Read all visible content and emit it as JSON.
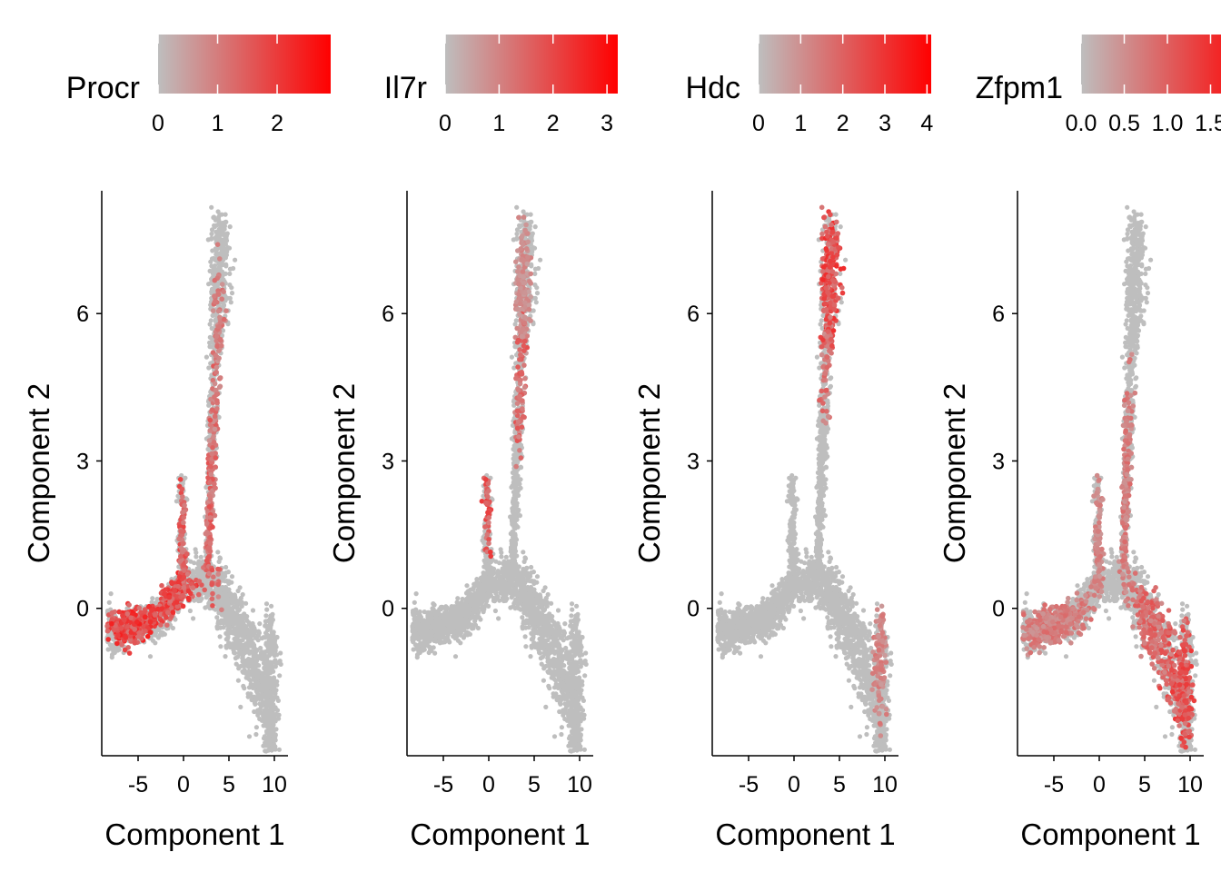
{
  "chart_data": [
    {
      "type": "scatter",
      "gene": "Procr",
      "xlabel": "Component 1",
      "ylabel": "Component 2",
      "x_ticks": [
        -5,
        0,
        5,
        10
      ],
      "y_ticks": [
        0,
        3,
        6
      ],
      "xlim": [
        -9,
        11.5
      ],
      "ylim": [
        -3,
        8.5
      ],
      "color_scale": {
        "low": "#bebebe",
        "high": "#ff0000",
        "min": 0,
        "max": 2.9,
        "ticks": [
          0,
          1,
          2
        ]
      },
      "expression_regions": [
        {
          "x": -6.0,
          "y": -0.25,
          "sx": 1.6,
          "sy": 0.35,
          "level": 0.65
        },
        {
          "x": -1.0,
          "y": 0.25,
          "sx": 1.5,
          "sy": 0.3,
          "level": 0.6
        },
        {
          "x": 0.0,
          "y": 1.6,
          "sx": 0.4,
          "sy": 0.7,
          "level": 0.5
        },
        {
          "x": 3.0,
          "y": 2.0,
          "sx": 0.5,
          "sy": 1.0,
          "level": 0.45
        },
        {
          "x": 4.0,
          "y": 4.6,
          "sx": 0.5,
          "sy": 1.0,
          "level": 0.35
        }
      ]
    },
    {
      "type": "scatter",
      "gene": "Il7r",
      "xlabel": "Component 1",
      "ylabel": "Component 2",
      "x_ticks": [
        -5,
        0,
        5,
        10
      ],
      "y_ticks": [
        0,
        3,
        6
      ],
      "xlim": [
        -9,
        11.5
      ],
      "ylim": [
        -3,
        8.5
      ],
      "color_scale": {
        "low": "#bebebe",
        "high": "#ff0000",
        "min": 0,
        "max": 3.2,
        "ticks": [
          0,
          1,
          2,
          3
        ]
      },
      "expression_regions": [
        {
          "x": -0.1,
          "y": 2.1,
          "sx": 0.3,
          "sy": 0.45,
          "level": 0.55
        },
        {
          "x": 3.8,
          "y": 4.4,
          "sx": 0.5,
          "sy": 0.7,
          "level": 0.45
        },
        {
          "x": 3.6,
          "y": 6.6,
          "sx": 0.6,
          "sy": 0.9,
          "level": 0.25
        }
      ]
    },
    {
      "type": "scatter",
      "gene": "Hdc",
      "xlabel": "Component 1",
      "ylabel": "Component 2",
      "x_ticks": [
        -5,
        0,
        5,
        10
      ],
      "y_ticks": [
        0,
        3,
        6
      ],
      "xlim": [
        -9,
        11.5
      ],
      "ylim": [
        -3,
        8.5
      ],
      "color_scale": {
        "low": "#bebebe",
        "high": "#ff0000",
        "min": 0,
        "max": 4.1,
        "ticks": [
          0,
          1,
          2,
          3,
          4
        ]
      },
      "expression_regions": [
        {
          "x": 4.2,
          "y": 6.9,
          "sx": 1.1,
          "sy": 0.9,
          "level": 0.6
        },
        {
          "x": 4.1,
          "y": 5.3,
          "sx": 0.6,
          "sy": 0.7,
          "level": 0.4
        },
        {
          "x": 9.6,
          "y": -0.6,
          "sx": 0.5,
          "sy": 0.8,
          "level": 0.3
        }
      ]
    },
    {
      "type": "scatter",
      "gene": "Zfpm1",
      "xlabel": "Component 1",
      "ylabel": "Component 2",
      "x_ticks": [
        -5,
        0,
        5,
        10
      ],
      "y_ticks": [
        0,
        3,
        6
      ],
      "xlim": [
        -9,
        11.5
      ],
      "ylim": [
        -3,
        8.5
      ],
      "color_scale": {
        "low": "#bebebe",
        "high": "#ff0000",
        "min": 0,
        "max": 2.0,
        "ticks": [
          "0.0",
          "0.5",
          "1.0",
          "1.5"
        ]
      },
      "expression_regions": [
        {
          "x": -5.0,
          "y": -0.3,
          "sx": 2.2,
          "sy": 0.45,
          "level": 0.35
        },
        {
          "x": 6.0,
          "y": -0.5,
          "sx": 1.4,
          "sy": 0.7,
          "level": 0.45
        },
        {
          "x": 9.0,
          "y": -1.5,
          "sx": 1.0,
          "sy": 0.8,
          "level": 0.55
        },
        {
          "x": 3.0,
          "y": 2.5,
          "sx": 0.4,
          "sy": 1.2,
          "level": 0.35
        },
        {
          "x": 0.0,
          "y": 1.6,
          "sx": 0.4,
          "sy": 0.7,
          "level": 0.3
        }
      ]
    }
  ]
}
